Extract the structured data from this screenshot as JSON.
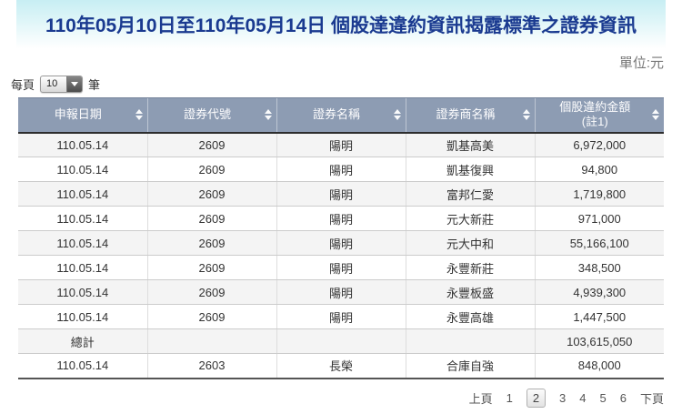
{
  "header": {
    "title": "110年05月10日至110年05月14日 個股達違約資訊揭露標準之證券資訊",
    "unit_label": "單位:元"
  },
  "per_page": {
    "prefix_label": "每頁",
    "selected_value": "10",
    "suffix_label": "筆"
  },
  "table": {
    "columns": [
      {
        "label": "申報日期",
        "label2": ""
      },
      {
        "label": "證券代號",
        "label2": ""
      },
      {
        "label": "證券名稱",
        "label2": ""
      },
      {
        "label": "證券商名稱",
        "label2": ""
      },
      {
        "label": "個股違約金額",
        "label2": "(註1)"
      }
    ],
    "rows": [
      [
        "110.05.14",
        "2609",
        "陽明",
        "凱基高美",
        "6,972,000"
      ],
      [
        "110.05.14",
        "2609",
        "陽明",
        "凱基復興",
        "94,800"
      ],
      [
        "110.05.14",
        "2609",
        "陽明",
        "富邦仁愛",
        "1,719,800"
      ],
      [
        "110.05.14",
        "2609",
        "陽明",
        "元大新莊",
        "971,000"
      ],
      [
        "110.05.14",
        "2609",
        "陽明",
        "元大中和",
        "55,166,100"
      ],
      [
        "110.05.14",
        "2609",
        "陽明",
        "永豐新莊",
        "348,500"
      ],
      [
        "110.05.14",
        "2609",
        "陽明",
        "永豐板盛",
        "4,939,300"
      ],
      [
        "110.05.14",
        "2609",
        "陽明",
        "永豐高雄",
        "1,447,500"
      ],
      [
        "總計",
        "",
        "",
        "",
        "103,615,050"
      ],
      [
        "110.05.14",
        "2603",
        "長榮",
        "合庫自強",
        "848,000"
      ]
    ],
    "total_row_label": "總計"
  },
  "pagination": {
    "prev_label": "上頁",
    "next_label": "下頁",
    "pages": [
      "1",
      "2",
      "3",
      "4",
      "5",
      "6"
    ],
    "current_page": "2"
  },
  "colors": {
    "title_text": "#1a3a90",
    "band_top": "#c7eef3",
    "header_bg": "#8d9cb3",
    "header_text": "#fdfdfe",
    "row_alt_bg": "#f4f4f4",
    "unit_text": "#777777",
    "table_bottom_border": "#555555"
  }
}
